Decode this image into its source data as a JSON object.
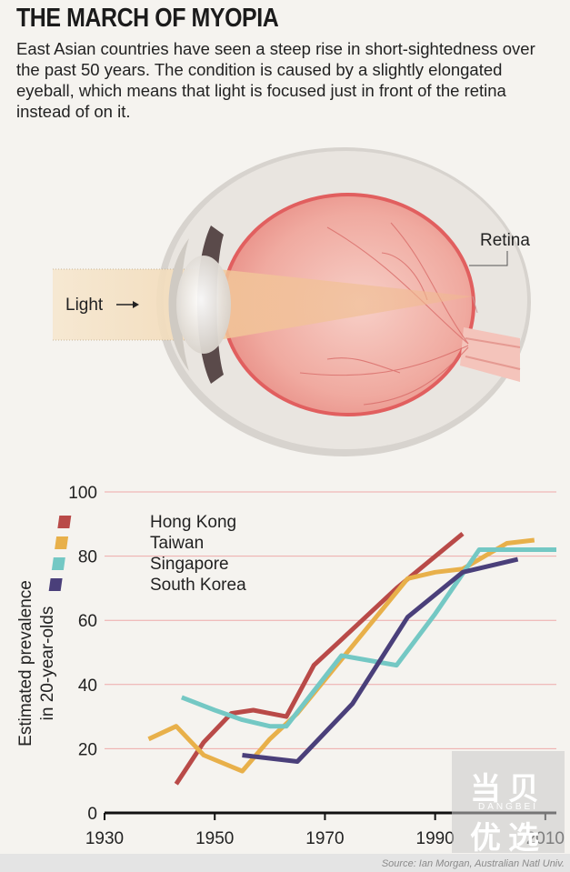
{
  "header": {
    "title": "THE MARCH OF MYOPIA",
    "intro": "East Asian countries have seen a steep rise in short-sightedness over the past 50 years. The condition is caused by a slightly elongated eyeball, which means that light is focused just in front of the retina instead of on it."
  },
  "diagram": {
    "light_label": "Light",
    "retina_label": "Retina"
  },
  "footer": {
    "source": "Source: Ian Morgan, Australian Natl Univ."
  },
  "watermark": {
    "line1": "当贝",
    "sub": "DANGBEI",
    "line2": "优选"
  },
  "colors": {
    "background": "#f5f3ef",
    "gridline": "#eeaaaa",
    "hong_kong": "#b94a48",
    "taiwan": "#e8b04a",
    "singapore": "#74c8c4",
    "south_korea": "#4a3f7a"
  },
  "chart_data": {
    "type": "line",
    "title": "",
    "xlabel": "",
    "ylabel": "Estimated prevalence in 20-year-olds",
    "ylabel_lines": [
      "Estimated prevalence",
      "in 20-year-olds"
    ],
    "xlim": [
      1930,
      2012
    ],
    "ylim": [
      0,
      100
    ],
    "xticks": [
      1930,
      1950,
      1970,
      1990,
      2010
    ],
    "yticks": [
      0,
      20,
      40,
      60,
      80,
      100
    ],
    "grid": true,
    "legend_position": "top-left",
    "series": [
      {
        "name": "Hong Kong",
        "color": "#b94a48",
        "x": [
          1943,
          1948,
          1953,
          1957,
          1960,
          1963,
          1968,
          1973,
          1983,
          1995
        ],
        "y": [
          9,
          22,
          31,
          32,
          31,
          30,
          46,
          54,
          70,
          87
        ]
      },
      {
        "name": "Taiwan",
        "color": "#e8b04a",
        "x": [
          1938,
          1943,
          1948,
          1955,
          1960,
          1965,
          1975,
          1985,
          1990,
          1995,
          2003,
          2008
        ],
        "y": [
          23,
          27,
          18,
          13,
          23,
          31,
          52,
          73,
          75,
          76,
          84,
          85
        ]
      },
      {
        "name": "Singapore",
        "color": "#74c8c4",
        "x": [
          1944,
          1950,
          1955,
          1960,
          1963,
          1973,
          1983,
          1990,
          1998,
          2003,
          2012
        ],
        "y": [
          36,
          32,
          29,
          27,
          27,
          49,
          46,
          62,
          82,
          82,
          82
        ]
      },
      {
        "name": "South Korea",
        "color": "#4a3f7a",
        "x": [
          1955,
          1965,
          1975,
          1985,
          1995,
          2005
        ],
        "y": [
          18,
          16,
          34,
          61,
          75,
          79
        ]
      }
    ]
  }
}
